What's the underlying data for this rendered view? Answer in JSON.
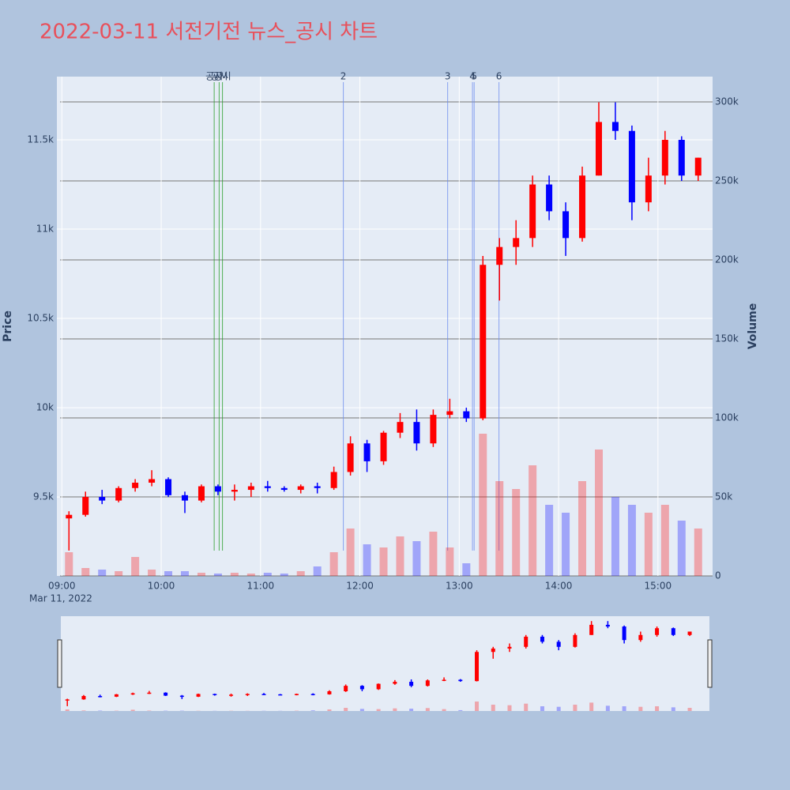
{
  "chart_data": {
    "type": "candlestick",
    "title": "2022-03-11 서전기전 뉴스_공시 차트",
    "y_label": "Price",
    "y2_label": "Volume",
    "x_sublabel": "Mar 11, 2022",
    "increasing_color": "#ff0000",
    "decreasing_color": "#0000ff",
    "grid": true,
    "x": [
      "2022-03-11 09:00",
      "2022-03-11 09:10",
      "2022-03-11 09:20",
      "2022-03-11 09:30",
      "2022-03-11 09:40",
      "2022-03-11 09:50",
      "2022-03-11 10:00",
      "2022-03-11 10:10",
      "2022-03-11 10:20",
      "2022-03-11 10:30",
      "2022-03-11 10:40",
      "2022-03-11 10:50",
      "2022-03-11 11:00",
      "2022-03-11 11:10",
      "2022-03-11 11:20",
      "2022-03-11 11:30",
      "2022-03-11 11:40",
      "2022-03-11 11:50",
      "2022-03-11 12:00",
      "2022-03-11 12:10",
      "2022-03-11 12:20",
      "2022-03-11 12:30",
      "2022-03-11 12:40",
      "2022-03-11 12:50",
      "2022-03-11 13:00",
      "2022-03-11 13:10",
      "2022-03-11 13:20",
      "2022-03-11 13:30",
      "2022-03-11 13:40",
      "2022-03-11 13:50",
      "2022-03-11 14:00",
      "2022-03-11 14:10",
      "2022-03-11 14:20",
      "2022-03-11 14:30",
      "2022-03-11 14:40",
      "2022-03-11 14:50",
      "2022-03-11 15:00",
      "2022-03-11 15:10",
      "2022-03-11 15:20"
    ],
    "open": [
      9380,
      9400,
      9500,
      9480,
      9550,
      9580,
      9600,
      9510,
      9480,
      9560,
      9530,
      9540,
      9560,
      9550,
      9540,
      9560,
      9550,
      9640,
      9800,
      9700,
      9860,
      9920,
      9800,
      9960,
      9980,
      9940,
      10800,
      10900,
      10950,
      11250,
      11100,
      10950,
      11300,
      11600,
      11550,
      11150,
      11300,
      11500,
      11300
    ],
    "high": [
      9420,
      9530,
      9540,
      9560,
      9600,
      9650,
      9610,
      9530,
      9570,
      9570,
      9570,
      9580,
      9590,
      9560,
      9570,
      9580,
      9670,
      9840,
      9820,
      9870,
      9970,
      9990,
      9990,
      10050,
      10000,
      10850,
      10950,
      11050,
      11300,
      11300,
      11150,
      11350,
      11710,
      11710,
      11580,
      11400,
      11550,
      11520,
      11400
    ],
    "low": [
      9200,
      9390,
      9460,
      9470,
      9530,
      9560,
      9500,
      9410,
      9470,
      9510,
      9480,
      9500,
      9530,
      9530,
      9520,
      9520,
      9540,
      9620,
      9640,
      9680,
      9830,
      9760,
      9780,
      9940,
      9920,
      9930,
      10600,
      10800,
      10900,
      11050,
      10850,
      10930,
      11300,
      11500,
      11050,
      11100,
      11250,
      11270,
      11270
    ],
    "close": [
      9400,
      9500,
      9480,
      9550,
      9580,
      9600,
      9510,
      9480,
      9560,
      9530,
      9540,
      9560,
      9550,
      9540,
      9560,
      9550,
      9640,
      9800,
      9700,
      9860,
      9920,
      9800,
      9960,
      9980,
      9940,
      10800,
      10900,
      10950,
      11250,
      11100,
      10950,
      11300,
      11600,
      11550,
      11150,
      11300,
      11500,
      11300,
      11400
    ],
    "volume": [
      15000,
      5000,
      4000,
      3000,
      12000,
      4000,
      3000,
      3000,
      2000,
      1500,
      2000,
      1500,
      2000,
      1500,
      3000,
      6000,
      15000,
      30000,
      20000,
      18000,
      25000,
      22000,
      28000,
      18000,
      8000,
      90000,
      60000,
      55000,
      70000,
      45000,
      40000,
      60000,
      80000,
      50000,
      45000,
      40000,
      45000,
      35000,
      30000
    ],
    "xlim": [
      "2022-03-11 08:57",
      "2022-03-11 15:33"
    ],
    "xticks": [
      {
        "value": "2022-03-11 09:00",
        "label": "09:00"
      },
      {
        "value": "2022-03-11 10:00",
        "label": "10:00"
      },
      {
        "value": "2022-03-11 11:00",
        "label": "11:00"
      },
      {
        "value": "2022-03-11 12:00",
        "label": "12:00"
      },
      {
        "value": "2022-03-11 13:00",
        "label": "13:00"
      },
      {
        "value": "2022-03-11 14:00",
        "label": "14:00"
      },
      {
        "value": "2022-03-11 15:00",
        "label": "15:00"
      }
    ],
    "ylim": [
      9058,
      11854
    ],
    "yticks": [
      {
        "value": 9500,
        "label": "9.5k"
      },
      {
        "value": 10000,
        "label": "10k"
      },
      {
        "value": 10500,
        "label": "10.5k"
      },
      {
        "value": 11000,
        "label": "11k"
      },
      {
        "value": 11500,
        "label": "11.5k"
      }
    ],
    "y2lim": [
      0,
      316000
    ],
    "y2ticks": [
      0,
      {
        "value": 50000,
        "label": "50k"
      },
      {
        "value": 100000,
        "label": "100k"
      },
      {
        "value": 150000,
        "label": "150k"
      },
      {
        "value": 200000,
        "label": "200k"
      },
      {
        "value": 250000,
        "label": "250k"
      },
      {
        "value": 300000,
        "label": "300k"
      }
    ],
    "annotations": [
      {
        "x": "2022-03-11 10:32",
        "label": "공시",
        "color": "#2ca02c"
      },
      {
        "x": "2022-03-11 10:35",
        "label": "공시",
        "color": "#2ca02c"
      },
      {
        "x": "2022-03-11 10:37",
        "label": "공시",
        "color": "#2ca02c"
      },
      {
        "x": "2022-03-11 11:50",
        "label": "2",
        "color": "#6f8fef"
      },
      {
        "x": "2022-03-11 12:53",
        "label": "3",
        "color": "#6f8fef"
      },
      {
        "x": "2022-03-11 13:08",
        "label": "4",
        "color": "#6f8fef"
      },
      {
        "x": "2022-03-11 13:09",
        "label": "5",
        "color": "#6f8fef"
      },
      {
        "x": "2022-03-11 13:24",
        "label": "6",
        "color": "#6f8fef"
      }
    ]
  }
}
